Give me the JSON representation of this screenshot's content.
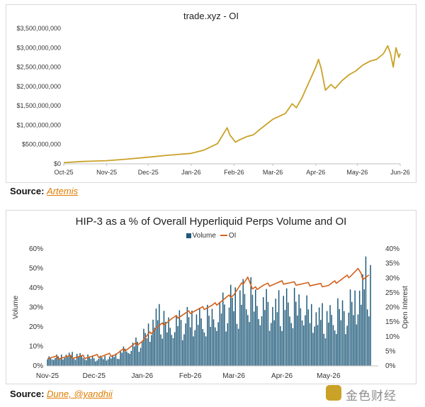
{
  "chart_data": [
    {
      "type": "line",
      "title": "trade.xyz - OI",
      "x_tick_labels": [
        "Oct-25",
        "Nov-25",
        "Dec-25",
        "Jan-26",
        "Feb-26",
        "Mar-26",
        "Apr-26",
        "May-26",
        "Jun-26"
      ],
      "y_tick_labels": [
        "$0",
        "$500,000,000",
        "$1,000,000,000",
        "$1,500,000,000",
        "$2,000,000,000",
        "$2,500,000,000",
        "$3,000,000,000",
        "$3,500,000,000"
      ],
      "ylim": [
        0,
        3500000000
      ],
      "series": [
        {
          "color": "#c9a227",
          "x": [
            "2025-10-01",
            "2025-10-15",
            "2025-11-01",
            "2025-11-15",
            "2025-12-01",
            "2025-12-15",
            "2026-01-01",
            "2026-01-10",
            "2026-01-20",
            "2026-01-27",
            "2026-01-29",
            "2026-02-02",
            "2026-02-05",
            "2026-02-10",
            "2026-02-15",
            "2026-02-20",
            "2026-03-01",
            "2026-03-10",
            "2026-03-15",
            "2026-03-18",
            "2026-03-22",
            "2026-03-27",
            "2026-04-01",
            "2026-04-03",
            "2026-04-05",
            "2026-04-08",
            "2026-04-12",
            "2026-04-15",
            "2026-04-20",
            "2026-04-25",
            "2026-04-30",
            "2026-05-05",
            "2026-05-10",
            "2026-05-15",
            "2026-05-20",
            "2026-05-23",
            "2026-05-25",
            "2026-05-27",
            "2026-05-29",
            "2026-05-31",
            "2026-06-01"
          ],
          "values": [
            30000000,
            60000000,
            80000000,
            120000000,
            170000000,
            220000000,
            270000000,
            350000000,
            520000000,
            930000000,
            740000000,
            560000000,
            620000000,
            700000000,
            750000000,
            900000000,
            1150000000,
            1300000000,
            1550000000,
            1450000000,
            1700000000,
            2100000000,
            2500000000,
            2700000000,
            2450000000,
            1900000000,
            2050000000,
            1950000000,
            2150000000,
            2300000000,
            2400000000,
            2550000000,
            2650000000,
            2700000000,
            2850000000,
            3050000000,
            2850000000,
            2500000000,
            3000000000,
            2750000000,
            2850000000
          ]
        }
      ]
    },
    {
      "type": "bar",
      "title": "HIP-3 as a % of Overall Hyperliquid Perps Volume and OI",
      "legend": [
        "Volume",
        "OI"
      ],
      "ylabel": "Volume",
      "y2label": "Open Interest",
      "x_tick_labels": [
        "Nov-25",
        "Dec-25",
        "Jan-26",
        "Feb-26",
        "Mar-26",
        "Apr-26",
        "May-26"
      ],
      "y_tick_labels": [
        "0%",
        "10%",
        "20%",
        "30%",
        "40%",
        "50%",
        "60%"
      ],
      "y2_tick_labels": [
        "0%",
        "5%",
        "10%",
        "15%",
        "20%",
        "25%",
        "30%",
        "35%",
        "40%"
      ],
      "ylim": [
        0,
        60
      ],
      "y2lim": [
        0,
        40
      ],
      "series": [
        {
          "name": "Volume",
          "color": "#1f5a7a",
          "x": [
            "2025-11-01",
            "2025-11-15",
            "2025-12-01",
            "2025-12-15",
            "2026-01-01",
            "2026-01-10",
            "2026-01-20",
            "2026-02-01",
            "2026-02-15",
            "2026-03-01",
            "2026-03-10",
            "2026-03-20",
            "2026-04-01",
            "2026-04-15",
            "2026-05-01",
            "2026-05-10",
            "2026-05-20",
            "2026-05-25"
          ],
          "values": [
            4,
            6,
            4,
            5,
            14,
            25,
            22,
            24,
            26,
            33,
            38,
            30,
            32,
            31,
            24,
            28,
            36,
            44
          ]
        },
        {
          "name": "OI",
          "color": "#d2601a",
          "x": [
            "2025-11-01",
            "2025-11-15",
            "2025-12-01",
            "2025-12-15",
            "2026-01-01",
            "2026-01-10",
            "2026-01-20",
            "2026-02-01",
            "2026-02-15",
            "2026-03-01",
            "2026-03-10",
            "2026-03-13",
            "2026-03-20",
            "2026-04-01",
            "2026-04-15",
            "2026-05-01",
            "2026-05-15",
            "2026-05-20",
            "2026-05-23",
            "2026-05-27"
          ],
          "values": [
            2.8,
            3.0,
            3.2,
            4.0,
            8.5,
            13.0,
            16.0,
            18.5,
            20.5,
            24.5,
            30.5,
            26.0,
            27.5,
            28.5,
            28.0,
            27.5,
            31.0,
            33.0,
            30.0,
            31.0
          ]
        }
      ]
    }
  ],
  "sources": {
    "source1_label": "Source:",
    "source1_link": "Artemis",
    "source2_label": "Source:",
    "source2_link": "Dune, @yandhii"
  },
  "watermark": {
    "text": "金色财经"
  }
}
